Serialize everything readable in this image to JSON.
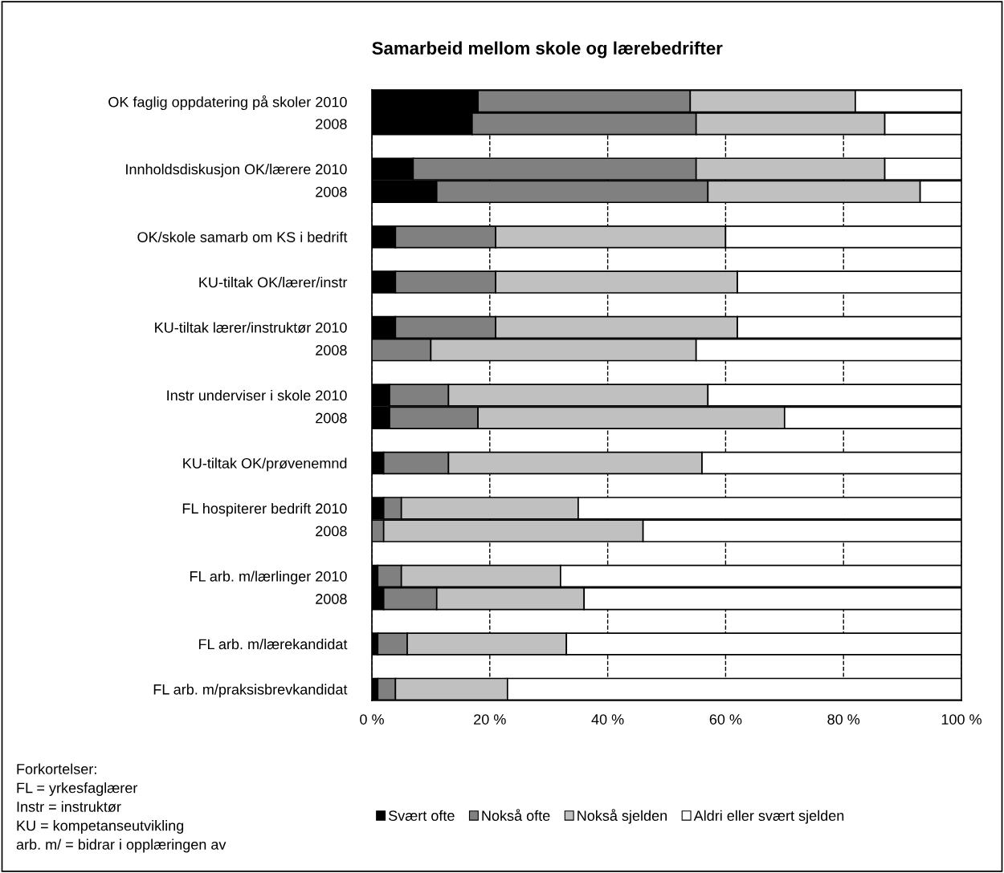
{
  "chart_data": {
    "type": "bar",
    "orientation": "horizontal",
    "stacked": true,
    "title": "Samarbeid mellom skole og lærebedrifter",
    "categories": [
      "OK faglig oppdatering på skoler 2010",
      "2008",
      null,
      "Innholdsdiskusjon OK/lærere 2010",
      "2008",
      null,
      "OK/skole samarb om KS i bedrift",
      null,
      "KU-tiltak OK/lærer/instr",
      null,
      "KU-tiltak lærer/instruktør 2010",
      "2008",
      null,
      "Instr underviser i skole 2010",
      "2008",
      null,
      "KU-tiltak OK/prøvenemnd",
      null,
      "FL hospiterer bedrift 2010",
      "2008",
      null,
      "FL arb. m/lærlinger 2010",
      "2008",
      null,
      "FL arb. m/lærekandidat",
      null,
      "FL arb. m/praksisbrevkandidat"
    ],
    "series": [
      {
        "name": "Svært ofte",
        "color": "#000000",
        "values": [
          18,
          17,
          null,
          7,
          11,
          null,
          4,
          null,
          4,
          null,
          4,
          0,
          null,
          3,
          3,
          null,
          2,
          null,
          2,
          0,
          null,
          1,
          2,
          null,
          1,
          null,
          1
        ]
      },
      {
        "name": "Nokså ofte",
        "color": "#808080",
        "values": [
          36,
          38,
          null,
          48,
          46,
          null,
          17,
          null,
          17,
          null,
          17,
          10,
          null,
          10,
          15,
          null,
          11,
          null,
          3,
          2,
          null,
          4,
          9,
          null,
          5,
          null,
          3
        ]
      },
      {
        "name": "Nokså sjelden",
        "color": "#c0c0c0",
        "values": [
          28,
          32,
          null,
          32,
          36,
          null,
          39,
          null,
          41,
          null,
          41,
          45,
          null,
          44,
          52,
          null,
          43,
          null,
          30,
          44,
          null,
          27,
          25,
          null,
          27,
          null,
          19
        ]
      },
      {
        "name": "Aldri eller svært sjelden",
        "color": "#ffffff",
        "values": [
          18,
          13,
          null,
          13,
          7,
          null,
          40,
          null,
          38,
          null,
          38,
          45,
          null,
          43,
          30,
          null,
          44,
          null,
          65,
          54,
          null,
          68,
          64,
          null,
          67,
          null,
          77
        ]
      }
    ],
    "xlim": [
      0,
      100
    ],
    "xticks": [
      {
        "value": 0,
        "label": "0 %"
      },
      {
        "value": 20,
        "label": "20 %"
      },
      {
        "value": 40,
        "label": "40 %"
      },
      {
        "value": 60,
        "label": "60 %"
      },
      {
        "value": 80,
        "label": "80 %"
      },
      {
        "value": 100,
        "label": "100 %"
      }
    ],
    "grid": "x",
    "line_style": "dashed",
    "legend": "bottom",
    "annotations": [
      "Forkortelser:",
      "FL = yrkesfaglærer",
      "Instr = instruktør",
      "KU = kompetanseutvikling",
      "arb. m/ = bidrar i opplæringen av"
    ]
  }
}
